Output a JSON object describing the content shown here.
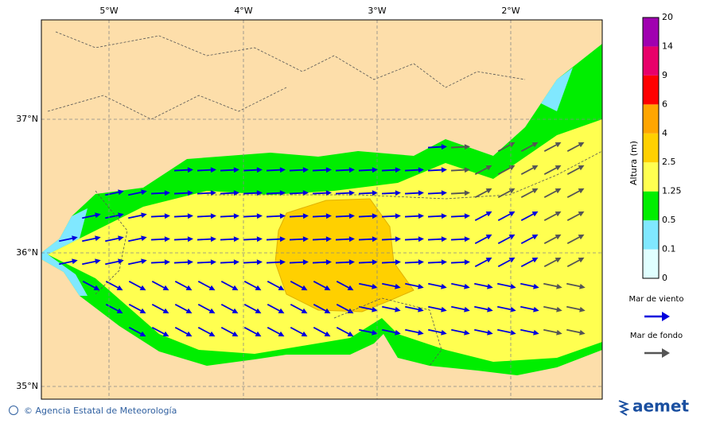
{
  "map": {
    "lon_labels": [
      "5°W",
      "4°W",
      "3°W",
      "2°W"
    ],
    "lat_labels": [
      "37°N",
      "36°N",
      "35°N"
    ],
    "colorbar": {
      "title": "Altura (m)",
      "levels": [
        0,
        0.1,
        0.5,
        1.25,
        2.5,
        4,
        6,
        9,
        14,
        20
      ],
      "colors": [
        "#e0ffff",
        "#80e8ff",
        "#00ee00",
        "#ffff50",
        "#ffd000",
        "#ffa500",
        "#ff0000",
        "#e8006a",
        "#a000b0"
      ]
    },
    "legend": [
      {
        "label": "Mar de viento",
        "color": "#0000dd"
      },
      {
        "label": "Mar de fondo",
        "color": "#555555"
      }
    ],
    "footer": {
      "credit": "© Agencia Estatal de Meteorología",
      "logo": "aemet"
    }
  }
}
